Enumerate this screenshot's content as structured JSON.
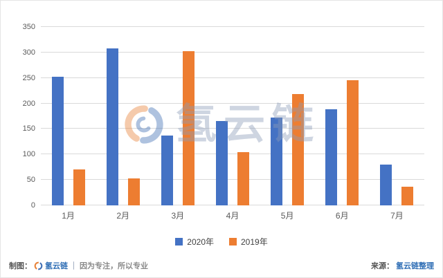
{
  "chart_data": {
    "type": "bar",
    "title": "",
    "categories": [
      "1月",
      "2月",
      "3月",
      "4月",
      "5月",
      "6月",
      "7月"
    ],
    "series": [
      {
        "name": "2020年",
        "color": "#4472c4",
        "values": [
          253,
          308,
          137,
          166,
          172,
          189,
          80
        ]
      },
      {
        "name": "2019年",
        "color": "#ed7d31",
        "values": [
          70,
          53,
          303,
          105,
          218,
          246,
          37
        ]
      }
    ],
    "xlabel": "",
    "ylabel": "",
    "ylim": [
      0,
      350
    ],
    "yticks": [
      0,
      50,
      100,
      150,
      200,
      250,
      300,
      350
    ],
    "grid": true,
    "legend_position": "bottom"
  },
  "watermark": {
    "text": "氢云链",
    "logo": "hydrogen-cloud-chain-logo"
  },
  "footer": {
    "left_label": "制图：",
    "left_brand": "氢云链",
    "left_separator": "｜",
    "left_slogan": "因为专注，所以专业",
    "right_label": "来源：",
    "right_brand": "氢云链整理"
  },
  "colors": {
    "series_2020": "#4472c4",
    "series_2019": "#ed7d31",
    "gridline": "#d9d9d9",
    "axis_text": "#595959",
    "brand_blue": "#2f6eb5",
    "watermark": "#8d9cb8"
  }
}
